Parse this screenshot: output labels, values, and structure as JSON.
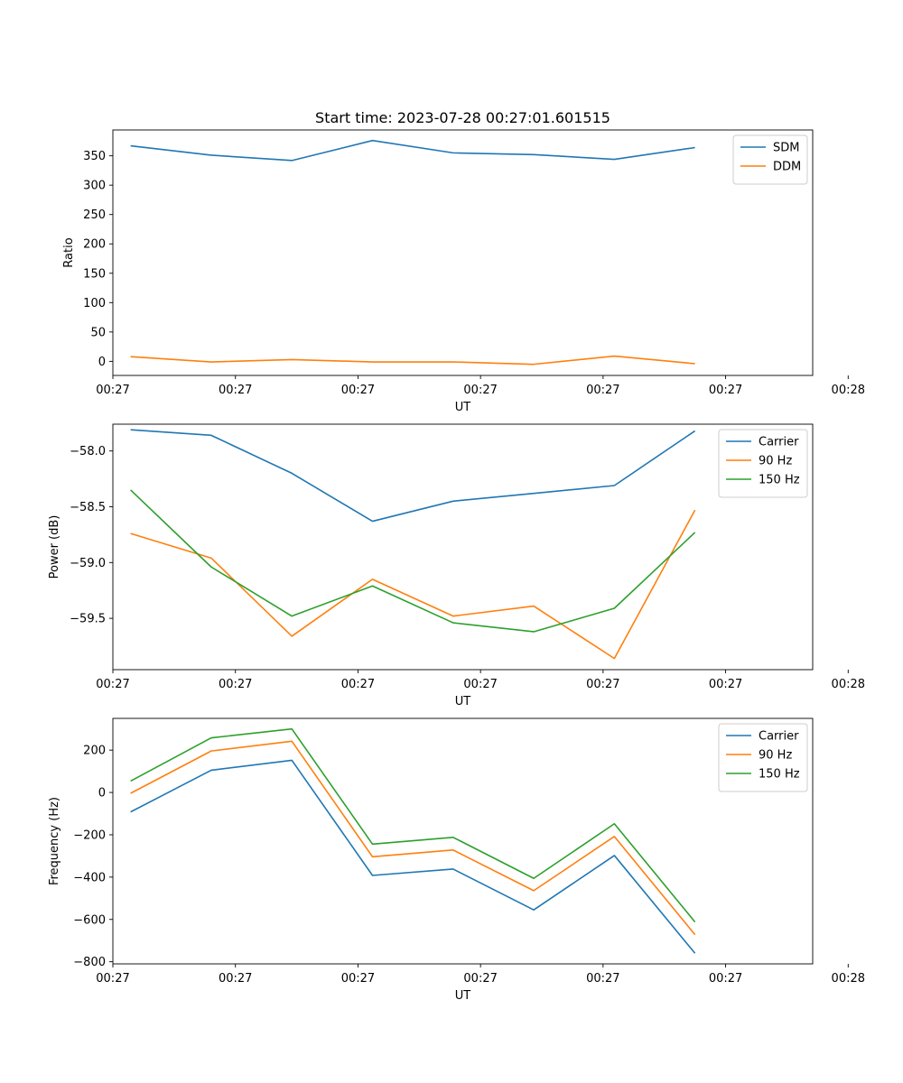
{
  "chart_data": [
    {
      "type": "line",
      "title": "Start time: 2023-07-28 00:27:01.601515",
      "xlabel": "UT",
      "ylabel": "Ratio",
      "x": [
        1,
        2,
        3,
        4,
        5,
        6,
        7,
        8
      ],
      "xlim": [
        0.78,
        9.46
      ],
      "xticks": [
        0.78,
        2.3,
        3.82,
        5.34,
        6.86,
        8.38,
        9.9
      ],
      "xtick_labels": [
        "00:27",
        "00:27",
        "00:27",
        "00:27",
        "00:27",
        "00:27",
        "00:28"
      ],
      "ylim": [
        -24,
        394
      ],
      "yticks": [
        0,
        50,
        100,
        150,
        200,
        250,
        300,
        350
      ],
      "ytick_labels": [
        "0",
        "50",
        "100",
        "150",
        "200",
        "250",
        "300",
        "350"
      ],
      "legend": "top-right",
      "series": [
        {
          "name": "SDM",
          "color": "#1f77b4",
          "values": [
            367,
            351,
            342,
            376,
            355,
            352,
            344,
            364
          ]
        },
        {
          "name": "DDM",
          "color": "#ff7f0e",
          "values": [
            8,
            -1,
            3,
            -1,
            -1,
            -5,
            9,
            -4
          ]
        }
      ]
    },
    {
      "type": "line",
      "title": "",
      "xlabel": "UT",
      "ylabel": "Power (dB)",
      "x": [
        1,
        2,
        3,
        4,
        5,
        6,
        7,
        8
      ],
      "xlim": [
        0.78,
        9.46
      ],
      "xticks": [
        0.78,
        2.3,
        3.82,
        5.34,
        6.86,
        8.38,
        9.9
      ],
      "xtick_labels": [
        "00:27",
        "00:27",
        "00:27",
        "00:27",
        "00:27",
        "00:27",
        "00:28"
      ],
      "ylim": [
        -59.96,
        -57.76
      ],
      "yticks": [
        -58.0,
        -58.5,
        -59.0,
        -59.5
      ],
      "ytick_labels": [
        "−58.0",
        "−58.5",
        "−59.0",
        "−59.5"
      ],
      "legend": "top-right",
      "series": [
        {
          "name": "Carrier",
          "color": "#1f77b4",
          "values": [
            -57.81,
            -57.86,
            -58.2,
            -58.63,
            -58.45,
            -58.38,
            -58.31,
            -57.82
          ]
        },
        {
          "name": "90 Hz",
          "color": "#ff7f0e",
          "values": [
            -58.74,
            -58.96,
            -59.66,
            -59.15,
            -59.48,
            -59.39,
            -59.86,
            -58.53
          ]
        },
        {
          "name": "150 Hz",
          "color": "#2ca02c",
          "values": [
            -58.35,
            -59.04,
            -59.48,
            -59.21,
            -59.54,
            -59.62,
            -59.41,
            -58.73
          ]
        }
      ]
    },
    {
      "type": "line",
      "title": "",
      "xlabel": "UT",
      "ylabel": "Frequency (Hz)",
      "x": [
        1,
        2,
        3,
        4,
        5,
        6,
        7,
        8
      ],
      "xlim": [
        0.78,
        9.46
      ],
      "xticks": [
        0.78,
        2.3,
        3.82,
        5.34,
        6.86,
        8.38,
        9.9
      ],
      "xtick_labels": [
        "00:27",
        "00:27",
        "00:27",
        "00:27",
        "00:27",
        "00:27",
        "00:28"
      ],
      "ylim": [
        -810,
        350
      ],
      "yticks": [
        200,
        0,
        -200,
        -400,
        -600,
        -800
      ],
      "ytick_labels": [
        "200",
        "0",
        "−200",
        "−400",
        "−600",
        "−800"
      ],
      "legend": "top-right",
      "series": [
        {
          "name": "Carrier",
          "color": "#1f77b4",
          "values": [
            -92,
            105,
            152,
            -392,
            -362,
            -555,
            -298,
            -760
          ]
        },
        {
          "name": "90 Hz",
          "color": "#ff7f0e",
          "values": [
            -4,
            196,
            242,
            -304,
            -272,
            -464,
            -208,
            -672
          ]
        },
        {
          "name": "150 Hz",
          "color": "#2ca02c",
          "values": [
            54,
            258,
            300,
            -244,
            -212,
            -406,
            -148,
            -612
          ]
        }
      ]
    }
  ]
}
